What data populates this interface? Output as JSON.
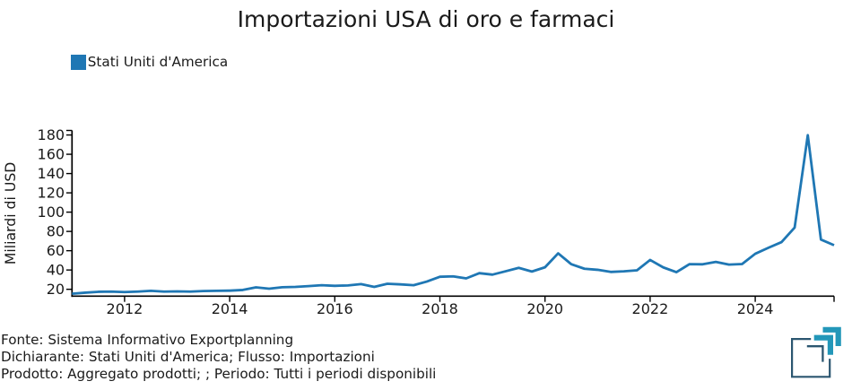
{
  "title": "Importazioni USA di oro e farmaci",
  "legend": {
    "label": "Stati Uniti d'America",
    "swatch_color": "#1f77b4"
  },
  "footer": {
    "line1": "Fonte: Sistema Informativo Exportplanning",
    "line2": "Dichiarante: Stati Uniti d'America; Flusso: Importazioni",
    "line3": "Prodotto: Aggregato prodotti; ; Periodo: Tutti i periodi disponibili"
  },
  "logo": {
    "name": "exportplanning-logo",
    "navy_color": "#2b5670",
    "teal_color": "#2397b9"
  },
  "chart_data": {
    "type": "line",
    "title": "Importazioni USA di oro e farmaci",
    "xlabel": "",
    "ylabel": "Miliardi di USD",
    "frequency": "quarterly",
    "categories": [
      "2011-Q1",
      "2011-Q2",
      "2011-Q3",
      "2011-Q4",
      "2012-Q1",
      "2012-Q2",
      "2012-Q3",
      "2012-Q4",
      "2013-Q1",
      "2013-Q2",
      "2013-Q3",
      "2013-Q4",
      "2014-Q1",
      "2014-Q2",
      "2014-Q3",
      "2014-Q4",
      "2015-Q1",
      "2015-Q2",
      "2015-Q3",
      "2015-Q4",
      "2016-Q1",
      "2016-Q2",
      "2016-Q3",
      "2016-Q4",
      "2017-Q1",
      "2017-Q2",
      "2017-Q3",
      "2017-Q4",
      "2018-Q1",
      "2018-Q2",
      "2018-Q3",
      "2018-Q4",
      "2019-Q1",
      "2019-Q2",
      "2019-Q3",
      "2019-Q4",
      "2020-Q1",
      "2020-Q2",
      "2020-Q3",
      "2020-Q4",
      "2021-Q1",
      "2021-Q2",
      "2021-Q3",
      "2021-Q4",
      "2022-Q1",
      "2022-Q2",
      "2022-Q3",
      "2022-Q4",
      "2023-Q1",
      "2023-Q2",
      "2023-Q3",
      "2023-Q4",
      "2024-Q1",
      "2024-Q2",
      "2024-Q3",
      "2024-Q4",
      "2025-Q1",
      "2025-Q2",
      "2025-Q3"
    ],
    "x": [
      2011.0,
      2011.25,
      2011.5,
      2011.75,
      2012.0,
      2012.25,
      2012.5,
      2012.75,
      2013.0,
      2013.25,
      2013.5,
      2013.75,
      2014.0,
      2014.25,
      2014.5,
      2014.75,
      2015.0,
      2015.25,
      2015.5,
      2015.75,
      2016.0,
      2016.25,
      2016.5,
      2016.75,
      2017.0,
      2017.25,
      2017.5,
      2017.75,
      2018.0,
      2018.25,
      2018.5,
      2018.75,
      2019.0,
      2019.25,
      2019.5,
      2019.75,
      2020.0,
      2020.25,
      2020.5,
      2020.75,
      2021.0,
      2021.25,
      2021.5,
      2021.75,
      2022.0,
      2022.25,
      2022.5,
      2022.75,
      2023.0,
      2023.25,
      2023.5,
      2023.75,
      2024.0,
      2024.25,
      2024.5,
      2024.75,
      2025.0,
      2025.25,
      2025.5
    ],
    "series": [
      {
        "name": "Stati Uniti d'America",
        "color": "#1f77b4",
        "values": [
          15.4,
          16.5,
          17.4,
          17.6,
          17.1,
          17.6,
          18.4,
          17.6,
          17.8,
          17.6,
          18.2,
          18.4,
          18.6,
          19.3,
          22.0,
          20.6,
          22.1,
          22.5,
          23.3,
          24.2,
          23.6,
          24.0,
          25.4,
          22.5,
          25.7,
          25.1,
          24.2,
          28.0,
          33.0,
          33.4,
          31.3,
          36.7,
          35.2,
          38.7,
          42.2,
          38.4,
          42.8,
          57.3,
          46.0,
          41.3,
          40.2,
          38.0,
          38.6,
          39.7,
          50.4,
          42.7,
          37.7,
          46.1,
          45.9,
          48.4,
          45.6,
          46.2,
          56.8,
          63.0,
          68.9,
          84.0,
          179.8,
          71.6,
          65.7
        ]
      }
    ],
    "x_ticks": [
      2012,
      2014,
      2016,
      2018,
      2020,
      2022,
      2024
    ],
    "y_ticks": [
      20,
      40,
      60,
      80,
      100,
      120,
      140,
      160,
      180
    ],
    "xlim": [
      2011.0,
      2025.5
    ],
    "ylim": [
      12.9,
      184.7
    ],
    "grid": false,
    "legend_position": "top-left"
  }
}
